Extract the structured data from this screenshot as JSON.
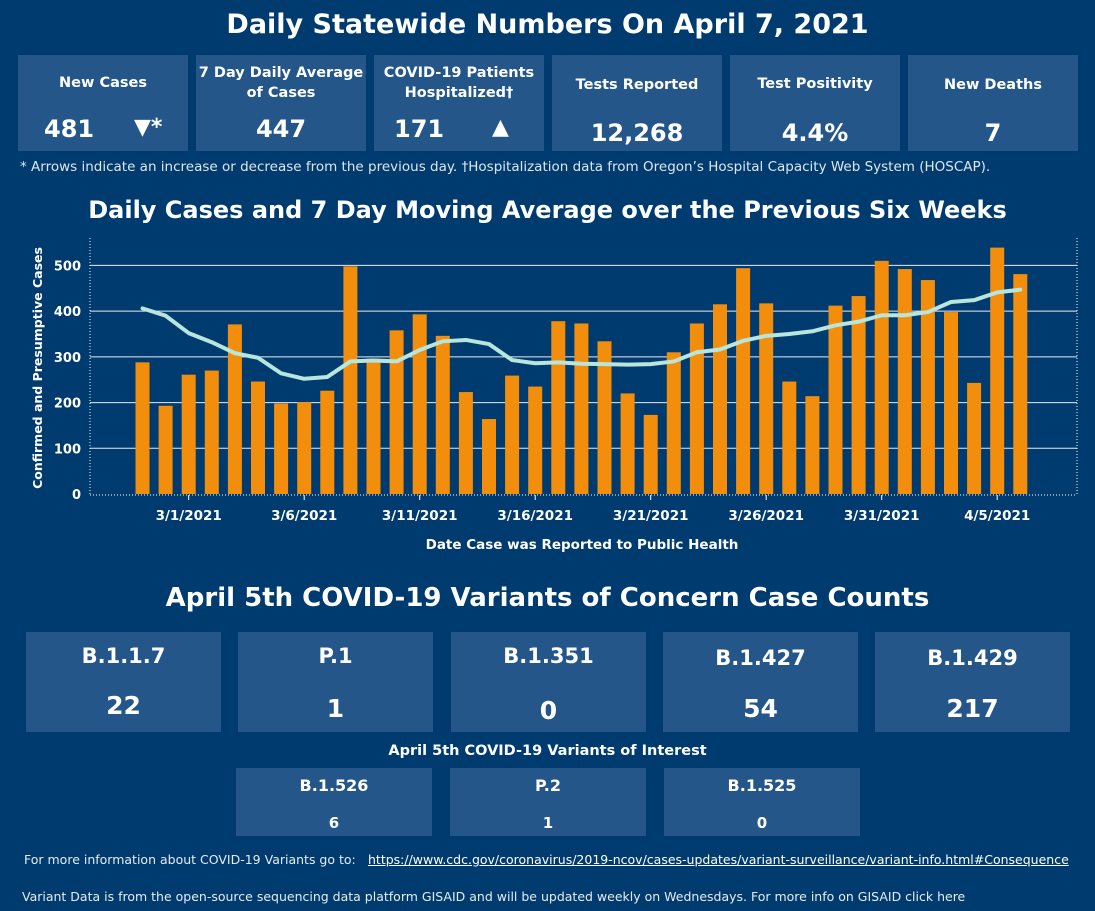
{
  "header": {
    "title": "Daily Statewide Numbers On April 7, 2021"
  },
  "stats": [
    {
      "label": "New Cases",
      "value": "481",
      "arrow": "▼*"
    },
    {
      "label": "7 Day Daily Average of Cases",
      "value": "447",
      "arrow": ""
    },
    {
      "label": "COVID-19 Patients Hospitalized†",
      "value": "171",
      "arrow": "▲"
    },
    {
      "label": "Tests Reported",
      "value": "12,268",
      "arrow": ""
    },
    {
      "label": "Test Positivity",
      "value": "4.4%",
      "arrow": ""
    },
    {
      "label": "New Deaths",
      "value": "7",
      "arrow": ""
    }
  ],
  "footnote": "* Arrows indicate an increase or decrease from the previous day. †Hospitalization data from Oregon’s Hospital Capacity Web System (HOSCAP).",
  "colors": {
    "background": "#003b6f",
    "tile": "#24568a",
    "bar": "#f28e0b",
    "line": "#b8e6dd"
  },
  "chart_data": {
    "type": "bar",
    "title": "Daily Cases and 7 Day Moving Average over the Previous Six Weeks",
    "xlabel": "Date Case was Reported to Public Health",
    "ylabel": "Confirmed and Presumptive Cases",
    "ylim": [
      0,
      560
    ],
    "yticks": [
      0,
      100,
      200,
      300,
      400,
      500
    ],
    "grid": true,
    "x_tick_labels": [
      "3/1/2021",
      "3/6/2021",
      "3/11/2021",
      "3/16/2021",
      "3/21/2021",
      "3/26/2021",
      "3/31/2021",
      "4/5/2021"
    ],
    "x_tick_indices": [
      2,
      7,
      12,
      17,
      22,
      27,
      32,
      37
    ],
    "categories": [
      "2/27",
      "2/28",
      "3/1",
      "3/2",
      "3/3",
      "3/4",
      "3/5",
      "3/6",
      "3/7",
      "3/8",
      "3/9",
      "3/10",
      "3/11",
      "3/12",
      "3/13",
      "3/14",
      "3/15",
      "3/16",
      "3/17",
      "3/18",
      "3/19",
      "3/20",
      "3/21",
      "3/22",
      "3/23",
      "3/24",
      "3/25",
      "3/26",
      "3/27",
      "3/28",
      "3/29",
      "3/30",
      "3/31",
      "4/1",
      "4/2",
      "4/3",
      "4/4",
      "4/5",
      "4/6"
    ],
    "series": [
      {
        "type": "bar",
        "values": [
          288,
          193,
          261,
          270,
          371,
          246,
          198,
          201,
          226,
          498,
          296,
          358,
          393,
          346,
          223,
          164,
          259,
          235,
          378,
          373,
          334,
          220,
          173,
          310,
          373,
          415,
          494,
          417,
          246,
          214,
          412,
          433,
          510,
          492,
          468,
          398,
          243,
          539,
          481
        ]
      },
      {
        "type": "line",
        "values": [
          406,
          390,
          352,
          332,
          308,
          298,
          264,
          252,
          256,
          290,
          292,
          290,
          315,
          334,
          337,
          328,
          293,
          286,
          288,
          285,
          284,
          283,
          284,
          290,
          310,
          316,
          335,
          346,
          350,
          356,
          369,
          377,
          391,
          391,
          398,
          420,
          424,
          441,
          447
        ]
      }
    ]
  },
  "variants": {
    "title": "April 5th  COVID-19 Variants of Concern Case Counts",
    "concern": [
      {
        "name": "B.1.1.7",
        "count": "22"
      },
      {
        "name": "P.1",
        "count": "1"
      },
      {
        "name": "B.1.351",
        "count": "0"
      },
      {
        "name": "B.1.427",
        "count": "54"
      },
      {
        "name": "B.1.429",
        "count": "217"
      }
    ],
    "interest_title": "April 5th COVID-19 Variants of Interest",
    "interest": [
      {
        "name": "B.1.526",
        "count": "6"
      },
      {
        "name": "P.2",
        "count": "1"
      },
      {
        "name": "B.1.525",
        "count": "0"
      }
    ]
  },
  "footer": {
    "more_info": "For more information about COVID-19 Variants go to:",
    "link_text": "https://www.cdc.gov/coronavirus/2019-ncov/cases-updates/variant-surveillance/variant-info.html#Consequence",
    "gisaid_note": "Variant Data is from the open-source sequencing data platform GISAID and will be updated weekly on Wednesdays. For more info on GISAID click here"
  }
}
